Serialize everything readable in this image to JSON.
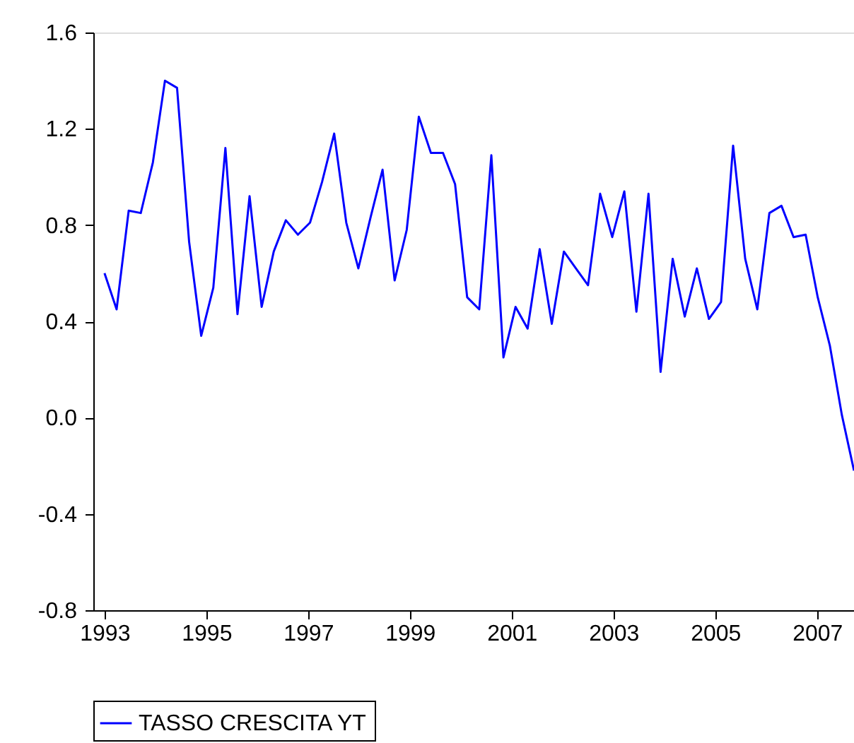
{
  "chart_data": {
    "type": "line",
    "x": [
      1993,
      1993.2375,
      1993.475,
      1993.7125,
      1993.95,
      1994.1875,
      1994.425,
      1994.6625,
      1994.9,
      1995.1375,
      1995.375,
      1995.6125,
      1995.85,
      1996.0875,
      1996.325,
      1996.5625,
      1996.8,
      1997.0375,
      1997.275,
      1997.5125,
      1997.75,
      1997.9875,
      1998.225,
      1998.4625,
      1998.7,
      1998.9375,
      1999.175,
      1999.4125,
      1999.65,
      1999.8875,
      2000.125,
      2000.3625,
      2000.6,
      2000.8375,
      2001.075,
      2001.3125,
      2001.55,
      2001.7875,
      2002.025,
      2002.2625,
      2002.5,
      2002.7375,
      2002.975,
      2003.2125,
      2003.45,
      2003.6875,
      2003.925,
      2004.1625,
      2004.4,
      2004.6375,
      2004.875,
      2005.1125,
      2005.35,
      2005.5875,
      2005.825,
      2006.0625,
      2006.3,
      2006.5375,
      2006.775,
      2007.0125,
      2007.25,
      2007.4875,
      2007.725
    ],
    "series": [
      {
        "name": "TASSO CRESCITA YT",
        "color": "#0000ff",
        "values": [
          0.6,
          0.45,
          0.86,
          0.85,
          1.06,
          1.4,
          1.37,
          0.73,
          0.34,
          0.54,
          1.12,
          0.43,
          0.92,
          0.46,
          0.69,
          0.82,
          0.76,
          0.81,
          0.98,
          1.18,
          0.81,
          0.62,
          0.83,
          1.03,
          0.57,
          0.78,
          1.25,
          1.1,
          1.1,
          0.97,
          0.5,
          0.45,
          1.09,
          0.25,
          0.46,
          0.37,
          0.7,
          0.39,
          0.69,
          0.62,
          0.55,
          0.93,
          0.75,
          0.94,
          0.44,
          0.93,
          0.19,
          0.66,
          0.42,
          0.62,
          0.41,
          0.48,
          1.13,
          0.66,
          0.45,
          0.85,
          0.88,
          0.75,
          0.76,
          0.5,
          0.3,
          0.01,
          -0.22
        ]
      }
    ],
    "xlim": [
      1992.78,
      2007.725
    ],
    "xticks": [
      1993,
      1995,
      1997,
      1999,
      2001,
      2003,
      2005,
      2007
    ],
    "ylim": [
      -0.8,
      1.6
    ],
    "yticks": [
      -0.8,
      -0.4,
      {
        "value": 0,
        "label": "0.0"
      },
      0.4,
      0.8,
      1.2,
      1.6
    ],
    "grid": false,
    "legend": "bottom",
    "line_style": "solid",
    "marker": "none"
  }
}
